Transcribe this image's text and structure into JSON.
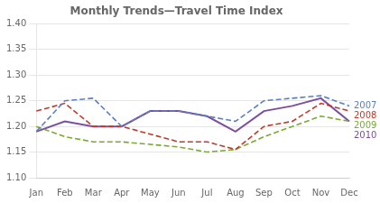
{
  "chart_data": {
    "type": "line",
    "title": "Monthly Trends—Travel Time Index",
    "categories": [
      "Jan",
      "Feb",
      "Mar",
      "Apr",
      "May",
      "Jun",
      "Jul",
      "Aug",
      "Sep",
      "Oct",
      "Nov",
      "Dec"
    ],
    "series": [
      {
        "name": "2007",
        "color": "#5b7fc4",
        "line_style": "dashed",
        "values": [
          1.19,
          1.25,
          1.255,
          1.2,
          1.23,
          1.23,
          1.22,
          1.21,
          1.25,
          1.255,
          1.26,
          1.24
        ]
      },
      {
        "name": "2008",
        "color": "#c0392b",
        "line_style": "dashed",
        "values": [
          1.23,
          1.245,
          1.2,
          1.2,
          1.185,
          1.17,
          1.17,
          1.155,
          1.2,
          1.21,
          1.245,
          1.23
        ]
      },
      {
        "name": "2009",
        "color": "#7aaa30",
        "line_style": "dashed",
        "values": [
          1.2,
          1.18,
          1.17,
          1.17,
          1.165,
          1.16,
          1.15,
          1.155,
          1.18,
          1.2,
          1.22,
          1.21
        ]
      },
      {
        "name": "2010",
        "color": "#7b4fa0",
        "line_style": "solid",
        "values": [
          1.19,
          1.21,
          1.2,
          1.2,
          1.23,
          1.23,
          1.22,
          1.19,
          1.23,
          1.24,
          1.255,
          1.21
        ]
      }
    ],
    "ylim": [
      1.1,
      1.4
    ],
    "yticks": [
      {
        "value": 1.1,
        "label": "1.10"
      },
      {
        "value": 1.15,
        "label": "1.15"
      },
      {
        "value": 1.2,
        "label": "1.20"
      },
      {
        "value": 1.25,
        "label": "1.25"
      },
      {
        "value": 1.3,
        "label": "1.30"
      },
      {
        "value": 1.35,
        "label": "1.35"
      },
      {
        "value": 1.4,
        "label": "1.40"
      }
    ],
    "grid": true
  }
}
